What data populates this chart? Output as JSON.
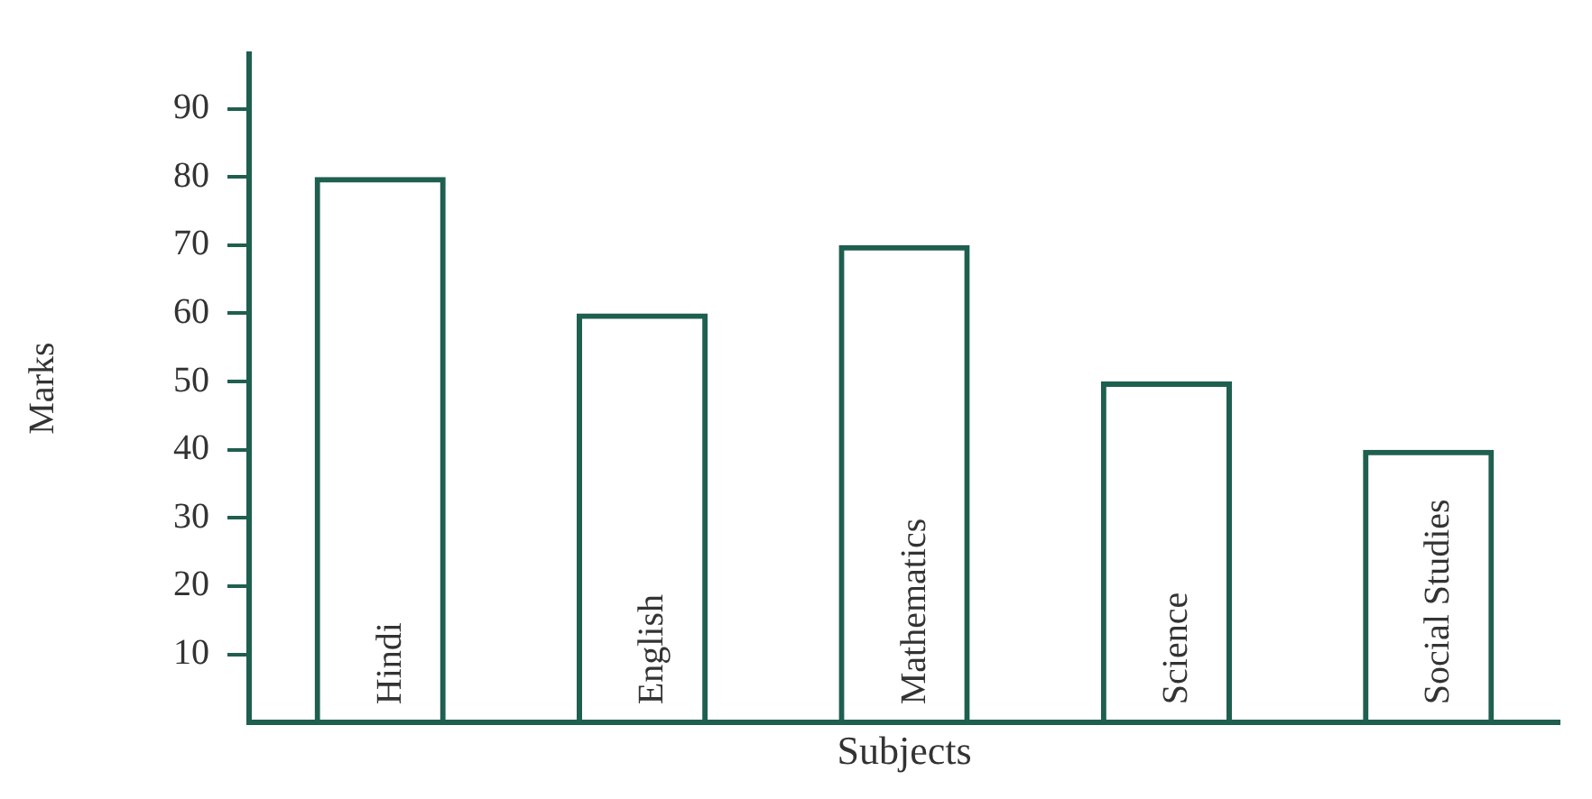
{
  "chart_data": {
    "type": "bar",
    "xlabel": "Subjects",
    "ylabel": "Marks",
    "categories": [
      "Hindi",
      "English",
      "Mathematics",
      "Science",
      "Social Studies"
    ],
    "values": [
      80,
      60,
      70,
      50,
      40
    ],
    "color": "#1f5f4f",
    "ylim": [
      0,
      98
    ],
    "yticks": [
      10,
      20,
      30,
      40,
      50,
      60,
      70,
      80,
      90
    ],
    "grid": false,
    "legend": false
  }
}
